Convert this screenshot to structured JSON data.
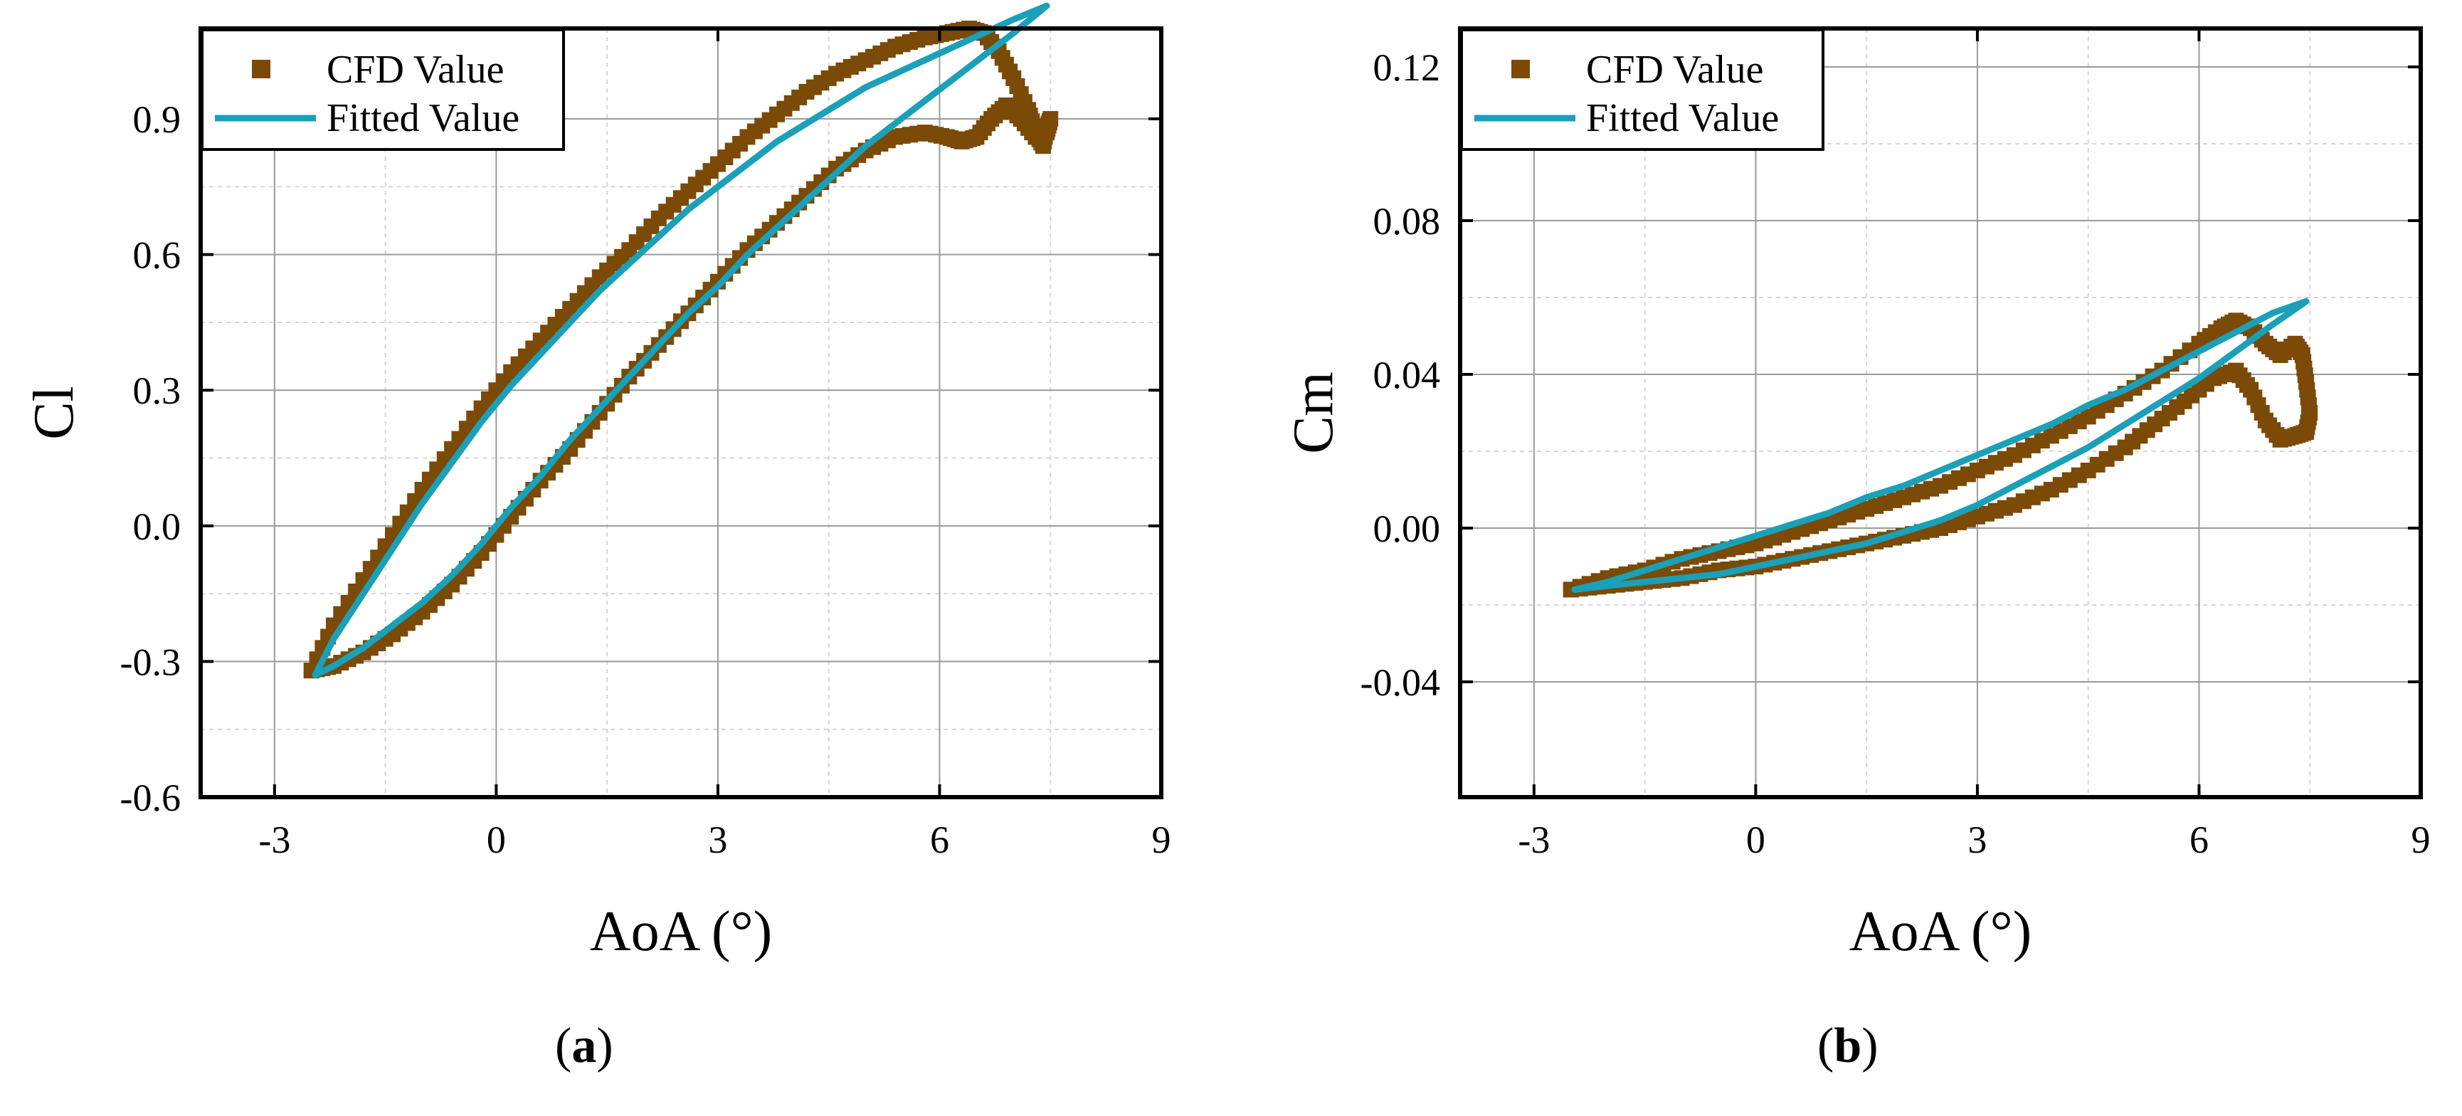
{
  "chart_data": [
    {
      "type": "scatter",
      "panel_label": "a",
      "xlabel": "AoA (°)",
      "ylabel": "Cl",
      "xlim": [
        -4,
        9
      ],
      "ylim": [
        -0.6,
        1.1
      ],
      "xticks": [
        -3,
        0,
        3,
        6,
        9
      ],
      "xtick_labels": [
        "-3",
        "0",
        "3",
        "6",
        "9"
      ],
      "yticks": [
        -0.6,
        -0.3,
        0.0,
        0.3,
        0.6,
        0.9
      ],
      "ytick_labels": [
        "-0.6",
        "-0.3",
        "0.0",
        "0.3",
        "0.6",
        "0.9"
      ],
      "grid": true,
      "legend_position": "top-left",
      "series": [
        {
          "name": "CFD Value",
          "kind": "markers",
          "marker": "square",
          "color": "#7a4a06",
          "points": [
            [
              -2.5,
              -0.32
            ],
            [
              -2.2,
              -0.22
            ],
            [
              -1.8,
              -0.12
            ],
            [
              -1.4,
              -0.02
            ],
            [
              -1.0,
              0.08
            ],
            [
              -0.6,
              0.17
            ],
            [
              -0.2,
              0.26
            ],
            [
              0.2,
              0.34
            ],
            [
              0.6,
              0.41
            ],
            [
              1.0,
              0.48
            ],
            [
              1.4,
              0.55
            ],
            [
              1.8,
              0.61
            ],
            [
              2.2,
              0.68
            ],
            [
              2.6,
              0.74
            ],
            [
              3.0,
              0.8
            ],
            [
              3.4,
              0.86
            ],
            [
              3.8,
              0.91
            ],
            [
              4.2,
              0.96
            ],
            [
              4.6,
              1.0
            ],
            [
              5.0,
              1.03
            ],
            [
              5.4,
              1.06
            ],
            [
              5.8,
              1.08
            ],
            [
              6.1,
              1.09
            ],
            [
              6.4,
              1.1
            ],
            [
              6.6,
              1.09
            ],
            [
              6.8,
              1.05
            ],
            [
              7.0,
              0.99
            ],
            [
              7.2,
              0.92
            ],
            [
              7.3,
              0.87
            ],
            [
              7.4,
              0.84
            ],
            [
              7.45,
              0.88
            ],
            [
              7.5,
              0.9
            ],
            [
              7.45,
              0.87
            ],
            [
              7.3,
              0.86
            ],
            [
              7.1,
              0.9
            ],
            [
              6.9,
              0.93
            ],
            [
              6.7,
              0.9
            ],
            [
              6.5,
              0.86
            ],
            [
              6.3,
              0.85
            ],
            [
              6.1,
              0.86
            ],
            [
              5.8,
              0.87
            ],
            [
              5.4,
              0.86
            ],
            [
              5.0,
              0.83
            ],
            [
              4.6,
              0.79
            ],
            [
              4.2,
              0.73
            ],
            [
              3.8,
              0.67
            ],
            [
              3.4,
              0.61
            ],
            [
              3.0,
              0.54
            ],
            [
              2.6,
              0.47
            ],
            [
              2.2,
              0.4
            ],
            [
              1.8,
              0.33
            ],
            [
              1.4,
              0.25
            ],
            [
              1.0,
              0.17
            ],
            [
              0.6,
              0.1
            ],
            [
              0.2,
              0.02
            ],
            [
              -0.2,
              -0.06
            ],
            [
              -0.6,
              -0.13
            ],
            [
              -1.0,
              -0.19
            ],
            [
              -1.4,
              -0.24
            ],
            [
              -1.8,
              -0.28
            ],
            [
              -2.2,
              -0.31
            ],
            [
              -2.5,
              -0.32
            ]
          ]
        },
        {
          "name": "Fitted Value",
          "kind": "line",
          "color": "#1aa0b8",
          "points": [
            [
              -2.45,
              -0.33
            ],
            [
              -2.2,
              -0.25
            ],
            [
              -1.8,
              -0.15
            ],
            [
              -1.4,
              -0.05
            ],
            [
              -1.0,
              0.05
            ],
            [
              -0.6,
              0.14
            ],
            [
              -0.2,
              0.23
            ],
            [
              0.2,
              0.31
            ],
            [
              0.6,
              0.38
            ],
            [
              1.0,
              0.45
            ],
            [
              1.4,
              0.52
            ],
            [
              1.8,
              0.58
            ],
            [
              2.2,
              0.64
            ],
            [
              2.6,
              0.7
            ],
            [
              3.0,
              0.75
            ],
            [
              3.4,
              0.8
            ],
            [
              3.8,
              0.85
            ],
            [
              4.2,
              0.89
            ],
            [
              4.6,
              0.93
            ],
            [
              5.0,
              0.97
            ],
            [
              5.4,
              1.0
            ],
            [
              5.8,
              1.03
            ],
            [
              6.2,
              1.06
            ],
            [
              6.6,
              1.09
            ],
            [
              7.0,
              1.12
            ],
            [
              7.3,
              1.14
            ],
            [
              7.45,
              1.15
            ],
            [
              7.3,
              1.13
            ],
            [
              7.0,
              1.09
            ],
            [
              6.6,
              1.04
            ],
            [
              6.2,
              0.99
            ],
            [
              5.8,
              0.94
            ],
            [
              5.4,
              0.89
            ],
            [
              5.0,
              0.84
            ],
            [
              4.6,
              0.78
            ],
            [
              4.2,
              0.72
            ],
            [
              3.8,
              0.66
            ],
            [
              3.4,
              0.6
            ],
            [
              3.0,
              0.53
            ],
            [
              2.6,
              0.47
            ],
            [
              2.2,
              0.4
            ],
            [
              1.8,
              0.33
            ],
            [
              1.4,
              0.26
            ],
            [
              1.0,
              0.19
            ],
            [
              0.6,
              0.11
            ],
            [
              0.2,
              0.04
            ],
            [
              -0.2,
              -0.04
            ],
            [
              -0.6,
              -0.11
            ],
            [
              -1.0,
              -0.17
            ],
            [
              -1.4,
              -0.22
            ],
            [
              -1.8,
              -0.27
            ],
            [
              -2.2,
              -0.31
            ],
            [
              -2.45,
              -0.33
            ]
          ]
        }
      ]
    },
    {
      "type": "scatter",
      "panel_label": "b",
      "xlabel": "AoA (°)",
      "ylabel": "Cm",
      "xlim": [
        -4,
        9
      ],
      "ylim": [
        -0.07,
        0.13
      ],
      "xticks": [
        -3,
        0,
        3,
        6,
        9
      ],
      "xtick_labels": [
        "-3",
        "0",
        "3",
        "6",
        "9"
      ],
      "yticks": [
        -0.04,
        0.0,
        0.04,
        0.08,
        0.12
      ],
      "ytick_labels": [
        "-0.04",
        "0.00",
        "0.04",
        "0.08",
        "0.12"
      ],
      "grid": true,
      "legend_position": "top-left",
      "series": [
        {
          "name": "CFD Value",
          "kind": "markers",
          "marker": "square",
          "color": "#7a4a06",
          "points": [
            [
              -2.5,
              -0.016
            ],
            [
              -2.0,
              -0.013
            ],
            [
              -1.5,
              -0.011
            ],
            [
              -1.0,
              -0.008
            ],
            [
              -0.5,
              -0.006
            ],
            [
              0.0,
              -0.004
            ],
            [
              0.5,
              -0.001
            ],
            [
              1.0,
              0.002
            ],
            [
              1.5,
              0.005
            ],
            [
              2.0,
              0.008
            ],
            [
              2.5,
              0.011
            ],
            [
              3.0,
              0.015
            ],
            [
              3.5,
              0.019
            ],
            [
              4.0,
              0.024
            ],
            [
              4.5,
              0.029
            ],
            [
              5.0,
              0.035
            ],
            [
              5.5,
              0.041
            ],
            [
              6.0,
              0.048
            ],
            [
              6.3,
              0.052
            ],
            [
              6.5,
              0.054
            ],
            [
              6.7,
              0.052
            ],
            [
              6.9,
              0.048
            ],
            [
              7.1,
              0.045
            ],
            [
              7.3,
              0.048
            ],
            [
              7.4,
              0.045
            ],
            [
              7.45,
              0.038
            ],
            [
              7.5,
              0.03
            ],
            [
              7.45,
              0.025
            ],
            [
              7.3,
              0.024
            ],
            [
              7.1,
              0.023
            ],
            [
              6.9,
              0.028
            ],
            [
              6.7,
              0.036
            ],
            [
              6.5,
              0.041
            ],
            [
              6.2,
              0.039
            ],
            [
              5.8,
              0.033
            ],
            [
              5.4,
              0.027
            ],
            [
              5.0,
              0.021
            ],
            [
              4.5,
              0.015
            ],
            [
              4.0,
              0.01
            ],
            [
              3.5,
              0.006
            ],
            [
              3.0,
              0.003
            ],
            [
              2.5,
              0.0
            ],
            [
              2.0,
              -0.002
            ],
            [
              1.5,
              -0.004
            ],
            [
              1.0,
              -0.006
            ],
            [
              0.5,
              -0.008
            ],
            [
              0.0,
              -0.01
            ],
            [
              -0.5,
              -0.011
            ],
            [
              -1.0,
              -0.013
            ],
            [
              -1.5,
              -0.014
            ],
            [
              -2.0,
              -0.015
            ],
            [
              -2.5,
              -0.016
            ]
          ]
        },
        {
          "name": "Fitted Value",
          "kind": "line",
          "color": "#1aa0b8",
          "points": [
            [
              -2.45,
              -0.016
            ],
            [
              -2.0,
              -0.014
            ],
            [
              -1.5,
              -0.011
            ],
            [
              -1.0,
              -0.008
            ],
            [
              -0.5,
              -0.005
            ],
            [
              0.0,
              -0.002
            ],
            [
              0.5,
              0.001
            ],
            [
              1.0,
              0.004
            ],
            [
              1.5,
              0.008
            ],
            [
              2.0,
              0.011
            ],
            [
              2.5,
              0.015
            ],
            [
              3.0,
              0.019
            ],
            [
              3.5,
              0.023
            ],
            [
              4.0,
              0.027
            ],
            [
              4.5,
              0.032
            ],
            [
              5.0,
              0.036
            ],
            [
              5.5,
              0.041
            ],
            [
              6.0,
              0.046
            ],
            [
              6.5,
              0.051
            ],
            [
              7.0,
              0.056
            ],
            [
              7.3,
              0.058
            ],
            [
              7.45,
              0.059
            ],
            [
              7.3,
              0.057
            ],
            [
              7.0,
              0.053
            ],
            [
              6.5,
              0.046
            ],
            [
              6.0,
              0.039
            ],
            [
              5.5,
              0.033
            ],
            [
              5.0,
              0.027
            ],
            [
              4.5,
              0.021
            ],
            [
              4.0,
              0.016
            ],
            [
              3.5,
              0.011
            ],
            [
              3.0,
              0.006
            ],
            [
              2.5,
              0.002
            ],
            [
              2.0,
              -0.001
            ],
            [
              1.5,
              -0.004
            ],
            [
              1.0,
              -0.006
            ],
            [
              0.5,
              -0.008
            ],
            [
              0.0,
              -0.01
            ],
            [
              -0.5,
              -0.012
            ],
            [
              -1.0,
              -0.013
            ],
            [
              -1.5,
              -0.014
            ],
            [
              -2.0,
              -0.015
            ],
            [
              -2.45,
              -0.016
            ]
          ]
        }
      ]
    }
  ]
}
